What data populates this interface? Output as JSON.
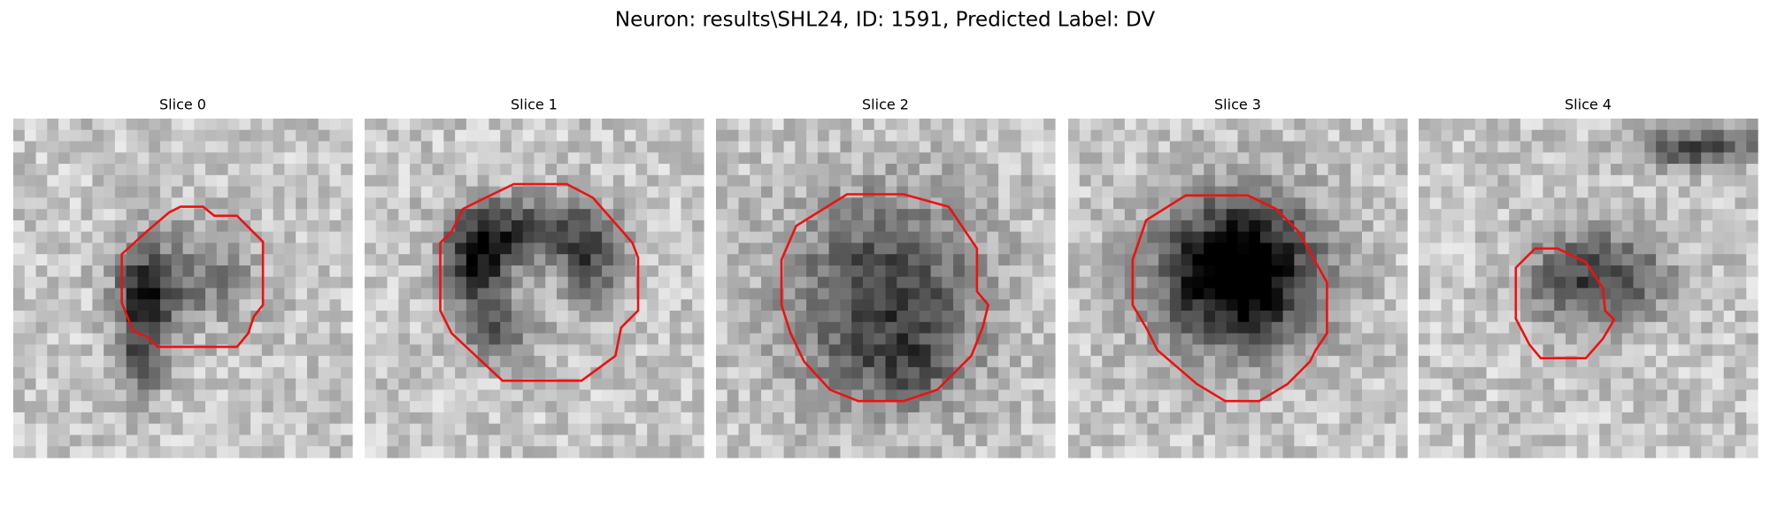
{
  "title": "Neuron: results\\SHL24, ID: 1591, Predicted Label: DV",
  "panels": [
    {
      "label": "Slice 0"
    },
    {
      "label": "Slice 1"
    },
    {
      "label": "Slice 2"
    },
    {
      "label": "Slice 3"
    },
    {
      "label": "Slice 4"
    }
  ]
}
